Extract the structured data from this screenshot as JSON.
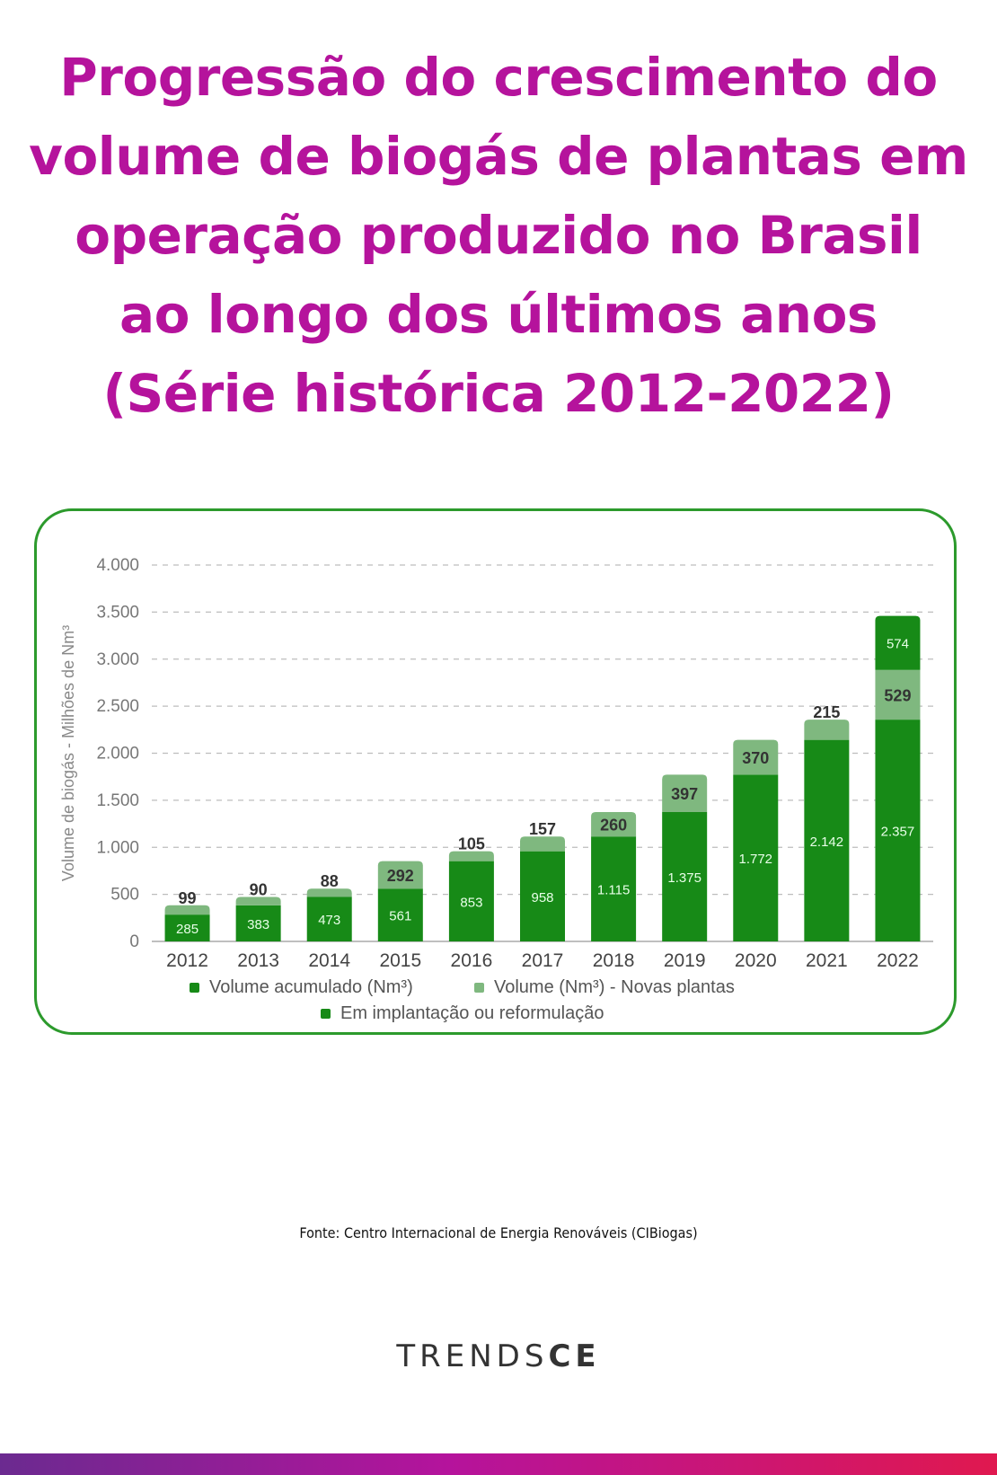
{
  "title_lines": [
    "Progressão do crescimento do",
    "volume de biogás de plantas em",
    "operação produzido no Brasil",
    "ao longo dos últimos anos",
    "(Série histórica 2012-2022)"
  ],
  "colors": {
    "title": "#b5139c",
    "frame": "#2c9a2c",
    "acumulado": "#178a17",
    "novas": "#7fb87f",
    "implantacao": "#178a17"
  },
  "chart_data": {
    "type": "bar",
    "stacked": true,
    "ylabel": "Volume de biogás - Milhões de Nm³",
    "ylim": [
      0,
      4000
    ],
    "yticks": [
      0,
      500,
      1000,
      1500,
      2000,
      2500,
      3000,
      3500,
      4000
    ],
    "ytick_labels": [
      "0",
      "500",
      "1.000",
      "1.500",
      "2.000",
      "2.500",
      "3.000",
      "3.500",
      "4.000"
    ],
    "grid": true,
    "legend_position": "bottom",
    "categories": [
      "2012",
      "2013",
      "2014",
      "2015",
      "2016",
      "2017",
      "2018",
      "2019",
      "2020",
      "2021",
      "2022"
    ],
    "series": [
      {
        "name": "Volume acumulado (Nm³)",
        "values": [
          285,
          383,
          473,
          561,
          853,
          958,
          1115,
          1375,
          1772,
          2142,
          2357
        ],
        "labels": [
          "285",
          "383",
          "473",
          "561",
          "853",
          "958",
          "1.115",
          "1.375",
          "1.772",
          "2.142",
          "2.357"
        ]
      },
      {
        "name": "Volume (Nm³) - Novas plantas",
        "values": [
          99,
          90,
          88,
          292,
          105,
          157,
          260,
          397,
          370,
          215,
          529
        ],
        "labels": [
          "99",
          "90",
          "88",
          "292",
          "105",
          "157",
          "260",
          "397",
          "370",
          "215",
          "529"
        ]
      },
      {
        "name": "Em implantação ou reformulação",
        "values": [
          0,
          0,
          0,
          0,
          0,
          0,
          0,
          0,
          0,
          0,
          574
        ],
        "labels": [
          "",
          "",
          "",
          "",
          "",
          "",
          "",
          "",
          "",
          "",
          "574"
        ]
      }
    ]
  },
  "source": "Fonte: Centro Internacional de Energia Renováveis (CIBiogas)",
  "logo": {
    "light": "TRENDS",
    "bold": "CE"
  }
}
